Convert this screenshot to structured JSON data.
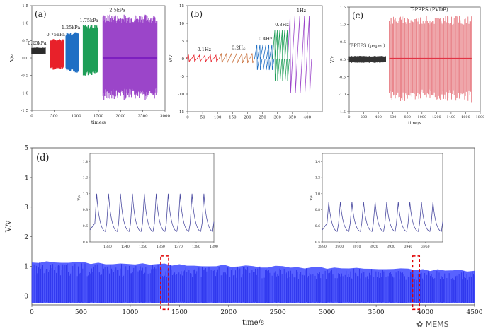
{
  "watermark": "MEMS",
  "colors": {
    "p025": "#2b2b2b",
    "p075": "#e8212a",
    "p125": "#1f6fc4",
    "p175": "#1e9e57",
    "p25": "#9b45c9",
    "paper": "#333333",
    "pvdf": "#e46a72",
    "d_series": "#2027e8",
    "red_box": "#e00000"
  },
  "chart_data": [
    {
      "panel": "(a)",
      "type": "line",
      "title": "",
      "xlabel": "time/s",
      "ylabel": "V/v",
      "xlim": [
        0,
        3000
      ],
      "ylim": [
        -1.5,
        1.5
      ],
      "xticks": [
        "0",
        "500",
        "1000",
        "1500",
        "2000",
        "2500",
        "3000"
      ],
      "yticks": [
        "-1.5",
        "-1.0",
        "-0.5",
        "0.0",
        "0.5",
        "1.0",
        "1.5"
      ],
      "series": [
        {
          "name": "0.25kPa",
          "x_range": [
            0,
            300
          ],
          "center": 0.2,
          "amplitude": 0.1
        },
        {
          "name": "0.75kPa",
          "x_range": [
            420,
            720
          ],
          "center": 0.1,
          "amplitude": 0.45
        },
        {
          "name": "1.25kPa",
          "x_range": [
            770,
            1050
          ],
          "center": 0.15,
          "amplitude": 0.6
        },
        {
          "name": "1.75kPa",
          "x_range": [
            1160,
            1480
          ],
          "center": 0.2,
          "amplitude": 0.75
        },
        {
          "name": "2.5kPa",
          "x_range": [
            1600,
            2820
          ],
          "center": 0.0,
          "amplitude": 1.25
        }
      ]
    },
    {
      "panel": "(b)",
      "type": "line",
      "title": "",
      "xlabel": "",
      "ylabel": "V/v",
      "xlim": [
        0,
        450
      ],
      "ylim": [
        -15,
        15
      ],
      "xticks": [
        "0",
        "50",
        "100",
        "150",
        "200",
        "250",
        "300",
        "350",
        "400"
      ],
      "yticks": [
        "-15",
        "-10",
        "-5",
        "0",
        "5",
        "10",
        "15"
      ],
      "series": [
        {
          "name": "0.1Hz",
          "x_range": [
            0,
            110
          ],
          "peak": 1.0
        },
        {
          "name": "0.2Hz",
          "x_range": [
            110,
            230
          ],
          "peak": 1.5
        },
        {
          "name": "0.4Hz",
          "x_range": [
            230,
            290
          ],
          "peak": 4.0
        },
        {
          "name": "0.8Hz",
          "x_range": [
            290,
            340
          ],
          "peak": 8.0
        },
        {
          "name": "1Hz",
          "x_range": [
            340,
            420
          ],
          "peak": 12.0
        }
      ]
    },
    {
      "panel": "(c)",
      "type": "line",
      "title": "",
      "xlabel": "time/s",
      "ylabel": "V/v",
      "xlim": [
        0,
        1800
      ],
      "ylim": [
        -1.5,
        1.5
      ],
      "xticks": [
        "0",
        "200",
        "400",
        "600",
        "800",
        "1000",
        "1200",
        "1400",
        "1600",
        "1800"
      ],
      "yticks": [
        "-1.5",
        "-1.0",
        "-0.5",
        "0.0",
        "0.5",
        "1.0",
        "1.5"
      ],
      "series": [
        {
          "name": "T-PEPS (paper)",
          "x_range": [
            0,
            500
          ],
          "center": 0.0,
          "amplitude": 0.1
        },
        {
          "name": "T-PEPS (PVDF)",
          "x_range": [
            550,
            1680
          ],
          "center": 0.0,
          "amplitude": 1.25
        }
      ]
    },
    {
      "panel": "(d)",
      "type": "line",
      "title": "",
      "xlabel": "time/s",
      "ylabel": "V/v",
      "xlim": [
        0,
        4500
      ],
      "ylim": [
        -0.3,
        5
      ],
      "xticks": [
        "0",
        "500",
        "1000",
        "1500",
        "2000",
        "2500",
        "3000",
        "3500",
        "4000",
        "4500"
      ],
      "yticks": [
        "0",
        "1",
        "2",
        "3",
        "4",
        "5"
      ],
      "series": [
        {
          "name": "long-term cycling",
          "x_range": [
            0,
            4500
          ],
          "upper_start": 1.15,
          "upper_end": 0.85,
          "lower": -0.25
        }
      ],
      "highlight_boxes": [
        {
          "x_range": [
            1310,
            1390
          ]
        },
        {
          "x_range": [
            3870,
            3940
          ]
        }
      ],
      "insets": [
        {
          "xlim": [
            1320,
            1390
          ],
          "ylim": [
            0.4,
            1.5
          ],
          "xticks": [
            "1330",
            "1340",
            "1350",
            "1360",
            "1370",
            "1380",
            "1390"
          ],
          "yticks": [
            "0.4",
            "0.6",
            "0.8",
            "1.0",
            "1.2",
            "1.4"
          ],
          "ylabel": "V/v",
          "peaks": 10,
          "peak": 1.0,
          "trough": 0.55
        },
        {
          "xlim": [
            3890,
            3960
          ],
          "ylim": [
            0.4,
            1.5
          ],
          "xticks": [
            "3890",
            "3900",
            "3910",
            "3920",
            "3930",
            "3940",
            "3950"
          ],
          "yticks": [
            "0.4",
            "0.6",
            "0.8",
            "1.0",
            "1.2",
            "1.4"
          ],
          "ylabel": "V/v",
          "peaks": 10,
          "peak": 0.9,
          "trough": 0.55
        }
      ]
    }
  ]
}
